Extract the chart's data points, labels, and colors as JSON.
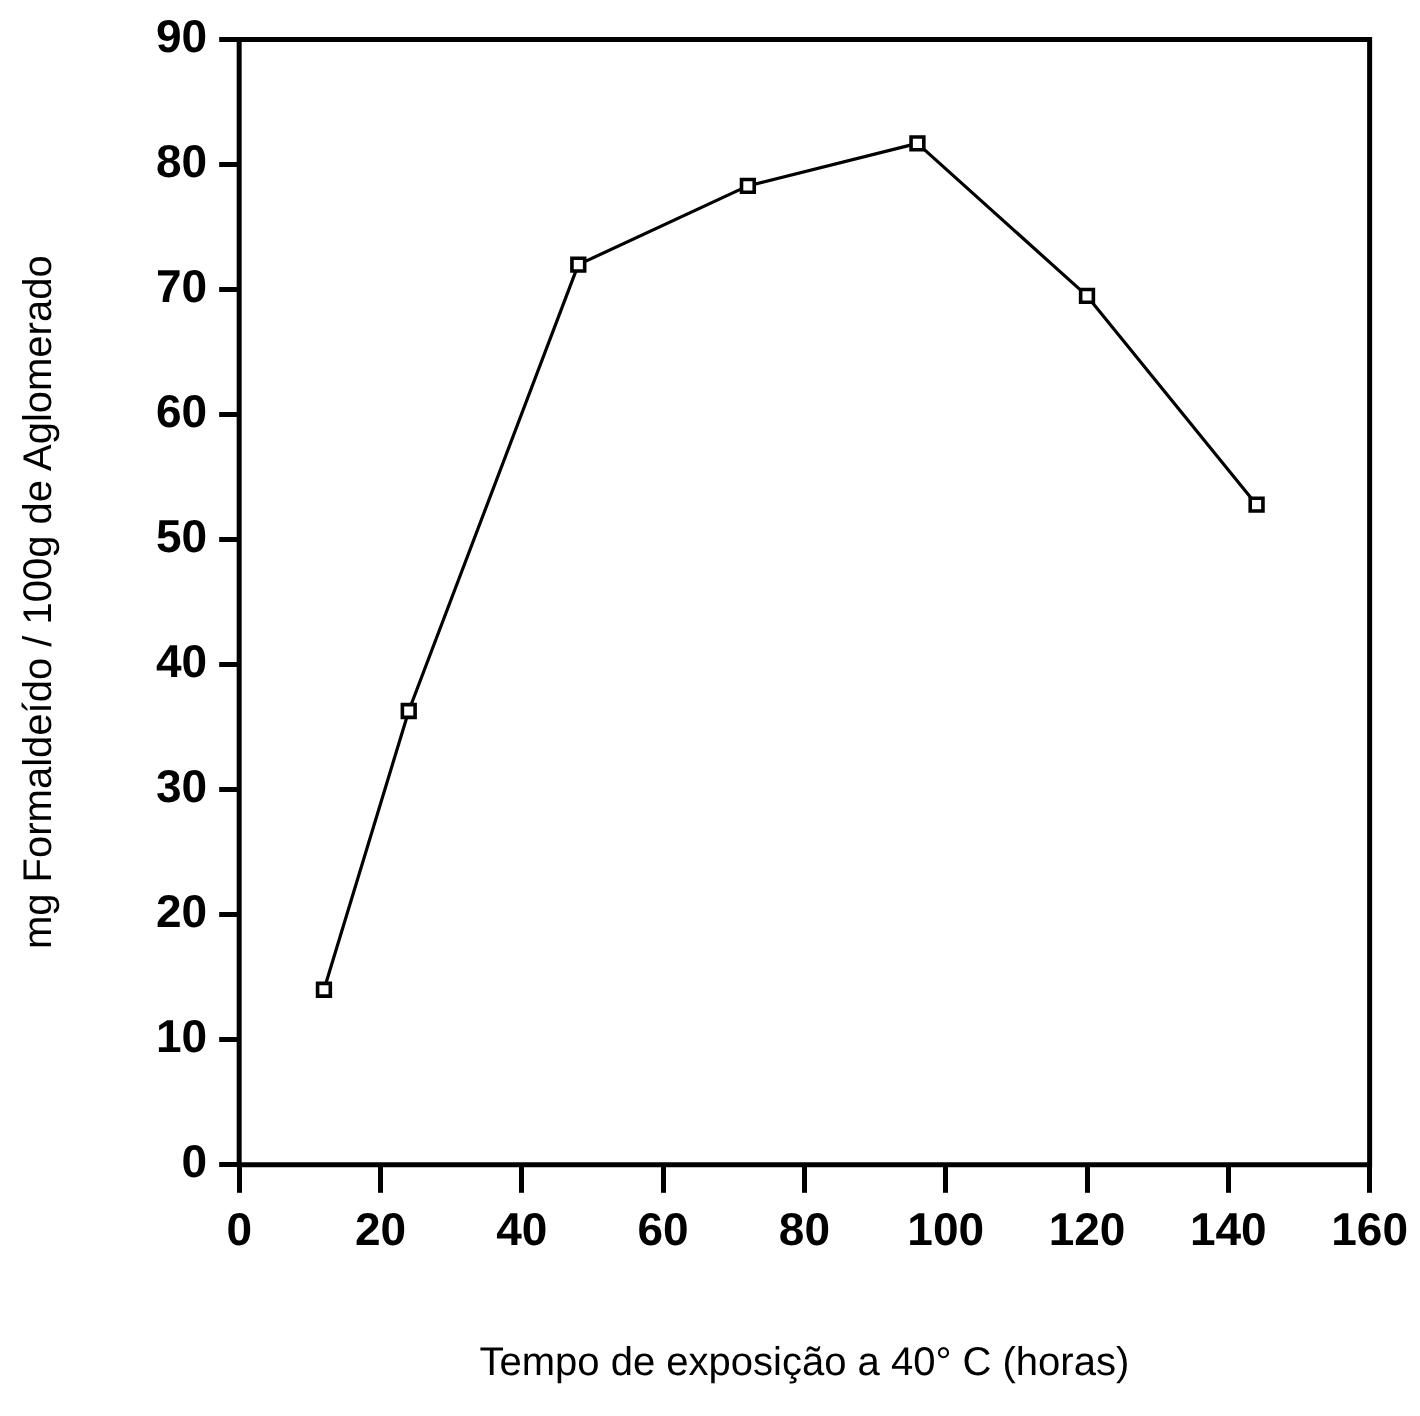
{
  "chart_data": {
    "type": "line",
    "xlabel": "Tempo de exposição a 40° C (horas)",
    "ylabel": "mg Formaldeído / 100g de Aglomerado",
    "x": [
      12,
      24,
      48,
      72,
      96,
      120,
      144
    ],
    "series": [
      {
        "color": "#000000",
        "values": [
          14,
          36.3,
          72,
          78.3,
          81.7,
          69.5,
          52.8
        ]
      }
    ],
    "xlim": [
      0,
      160
    ],
    "xticks": [
      0,
      20,
      40,
      60,
      80,
      100,
      120,
      140,
      160
    ],
    "ylim": [
      0,
      90
    ],
    "yticks": [
      0,
      10,
      20,
      30,
      40,
      50,
      60,
      70,
      80,
      90
    ],
    "grid": false,
    "legend": false,
    "marker": "square",
    "line_style": "solid"
  }
}
